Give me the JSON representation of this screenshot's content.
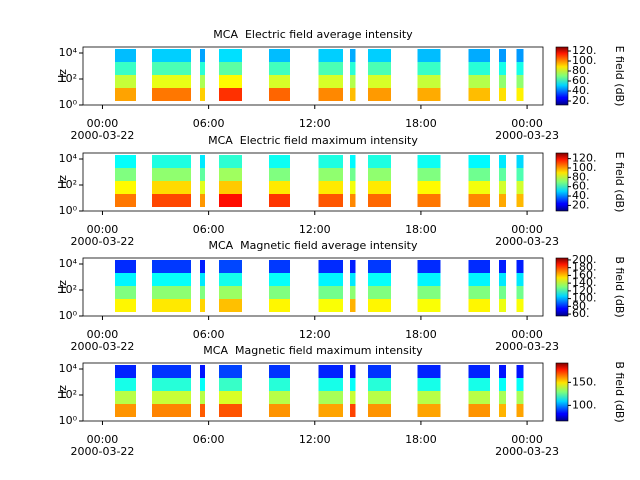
{
  "chart_data": [
    {
      "type": "spectrogram",
      "title": "MCA  Electric field average intensity",
      "ylabel": "Hz",
      "zlabel": "E field (dB)",
      "xlim": [
        -1.1,
        24.9
      ],
      "xticks": [
        {
          "value": 0,
          "label": "00:00",
          "date": "2000-03-22"
        },
        {
          "value": 6,
          "label": "06:00"
        },
        {
          "value": 12,
          "label": "12:00"
        },
        {
          "value": 18,
          "label": "18:00"
        },
        {
          "value": 24,
          "label": "00:00",
          "date": "2000-03-23"
        }
      ],
      "ylim": [
        1,
        29000
      ],
      "yscale": "log",
      "yticks": [
        {
          "value": 1,
          "label": "10⁰"
        },
        {
          "value": 100,
          "label": "10²"
        },
        {
          "value": 10000,
          "label": "10⁴"
        }
      ],
      "zlim": [
        12,
        128
      ],
      "zticks": [
        {
          "value": 20,
          "label": "20."
        },
        {
          "value": 40,
          "label": "40."
        },
        {
          "value": 60,
          "label": "60."
        },
        {
          "value": 80,
          "label": "80."
        },
        {
          "value": 100,
          "label": "100."
        },
        {
          "value": 120,
          "label": "120."
        }
      ],
      "blocks": [
        [
          0.7,
          1.9
        ],
        [
          2.8,
          5.0
        ],
        [
          5.5,
          5.8
        ],
        [
          6.6,
          7.9
        ],
        [
          9.4,
          10.6
        ],
        [
          12.2,
          13.6
        ],
        [
          14.0,
          14.3
        ],
        [
          15.0,
          16.3
        ],
        [
          17.8,
          19.1
        ],
        [
          20.7,
          21.9
        ],
        [
          22.4,
          22.8
        ],
        [
          23.4,
          23.8
        ]
      ],
      "bands": [
        2,
        20,
        200,
        2000,
        20000
      ],
      "z": [
        [
          95,
          78,
          62,
          48
        ],
        [
          100,
          82,
          64,
          50
        ],
        [
          90,
          75,
          60,
          45
        ],
        [
          108,
          85,
          66,
          52
        ],
        [
          102,
          80,
          63,
          48
        ],
        [
          98,
          80,
          64,
          50
        ],
        [
          92,
          76,
          60,
          46
        ],
        [
          96,
          80,
          64,
          50
        ],
        [
          94,
          78,
          62,
          48
        ],
        [
          92,
          76,
          60,
          46
        ],
        [
          88,
          72,
          58,
          44
        ],
        [
          86,
          72,
          58,
          44
        ]
      ]
    },
    {
      "type": "spectrogram",
      "title": "MCA  Electric field maximum intensity",
      "ylabel": "Hz",
      "zlabel": "E field (dB)",
      "xlim": [
        -1.1,
        24.9
      ],
      "xticks": [
        {
          "value": 0,
          "label": "00:00",
          "date": "2000-03-22"
        },
        {
          "value": 6,
          "label": "06:00"
        },
        {
          "value": 12,
          "label": "12:00"
        },
        {
          "value": 18,
          "label": "18:00"
        },
        {
          "value": 24,
          "label": "00:00",
          "date": "2000-03-23"
        }
      ],
      "ylim": [
        1,
        29000
      ],
      "yscale": "log",
      "yticks": [
        {
          "value": 1,
          "label": "10⁰"
        },
        {
          "value": 100,
          "label": "10²"
        },
        {
          "value": 10000,
          "label": "10⁴"
        }
      ],
      "zlim": [
        8,
        132
      ],
      "zticks": [
        {
          "value": 20,
          "label": "20."
        },
        {
          "value": 40,
          "label": "40."
        },
        {
          "value": 60,
          "label": "60."
        },
        {
          "value": 80,
          "label": "80."
        },
        {
          "value": 100,
          "label": "100."
        },
        {
          "value": 120,
          "label": "120."
        }
      ],
      "blocks": [
        [
          0.7,
          1.9
        ],
        [
          2.8,
          5.0
        ],
        [
          5.5,
          5.8
        ],
        [
          6.6,
          7.9
        ],
        [
          9.4,
          10.6
        ],
        [
          12.2,
          13.6
        ],
        [
          14.0,
          14.3
        ],
        [
          15.0,
          16.3
        ],
        [
          17.8,
          19.1
        ],
        [
          20.7,
          21.9
        ],
        [
          22.4,
          22.8
        ],
        [
          23.4,
          23.8
        ]
      ],
      "bands": [
        2,
        20,
        200,
        2000,
        20000
      ],
      "z": [
        [
          102,
          86,
          70,
          55
        ],
        [
          108,
          90,
          72,
          58
        ],
        [
          98,
          82,
          66,
          52
        ],
        [
          115,
          92,
          74,
          60
        ],
        [
          110,
          88,
          70,
          56
        ],
        [
          106,
          88,
          72,
          58
        ],
        [
          100,
          84,
          68,
          54
        ],
        [
          104,
          88,
          72,
          58
        ],
        [
          102,
          86,
          70,
          56
        ],
        [
          100,
          84,
          68,
          54
        ],
        [
          96,
          80,
          66,
          52
        ],
        [
          94,
          80,
          64,
          50
        ]
      ]
    },
    {
      "type": "spectrogram",
      "title": "MCA  Magnetic field average intensity",
      "ylabel": "Hz",
      "zlabel": "B field (dB)",
      "xlim": [
        -1.1,
        24.9
      ],
      "xticks": [
        {
          "value": 0,
          "label": "00:00",
          "date": "2000-03-22"
        },
        {
          "value": 6,
          "label": "06:00"
        },
        {
          "value": 12,
          "label": "12:00"
        },
        {
          "value": 18,
          "label": "18:00"
        },
        {
          "value": 24,
          "label": "00:00",
          "date": "2000-03-23"
        }
      ],
      "ylim": [
        1,
        29000
      ],
      "yscale": "log",
      "yticks": [
        {
          "value": 1,
          "label": "10⁰"
        },
        {
          "value": 100,
          "label": "10²"
        },
        {
          "value": 10000,
          "label": "10⁴"
        }
      ],
      "zlim": [
        55,
        205
      ],
      "zticks": [
        {
          "value": 60,
          "label": "60."
        },
        {
          "value": 80,
          "label": "80."
        },
        {
          "value": 100,
          "label": "100."
        },
        {
          "value": 120,
          "label": "120."
        },
        {
          "value": 140,
          "label": "140."
        },
        {
          "value": 160,
          "label": "160."
        },
        {
          "value": 180,
          "label": "180."
        },
        {
          "value": 200,
          "label": "200."
        }
      ],
      "blocks": [
        [
          0.7,
          1.9
        ],
        [
          2.8,
          5.0
        ],
        [
          5.5,
          5.8
        ],
        [
          6.6,
          7.9
        ],
        [
          9.4,
          10.6
        ],
        [
          12.2,
          13.6
        ],
        [
          14.0,
          14.3
        ],
        [
          15.0,
          16.3
        ],
        [
          17.8,
          19.1
        ],
        [
          20.7,
          21.9
        ],
        [
          22.4,
          22.8
        ],
        [
          23.4,
          23.8
        ]
      ],
      "bands": [
        2,
        20,
        200,
        2000,
        20000
      ],
      "z": [
        [
          150,
          130,
          110,
          80
        ],
        [
          152,
          132,
          112,
          82
        ],
        [
          155,
          130,
          108,
          78
        ],
        [
          158,
          134,
          114,
          84
        ],
        [
          150,
          130,
          112,
          82
        ],
        [
          148,
          128,
          110,
          80
        ],
        [
          160,
          132,
          108,
          78
        ],
        [
          150,
          130,
          112,
          82
        ],
        [
          148,
          130,
          110,
          80
        ],
        [
          150,
          130,
          110,
          80
        ],
        [
          146,
          128,
          108,
          78
        ],
        [
          148,
          128,
          108,
          78
        ]
      ]
    },
    {
      "type": "spectrogram",
      "title": "MCA  Magnetic field maximum intensity",
      "ylabel": "Hz",
      "zlabel": "B field (dB)",
      "xlim": [
        -1.1,
        24.9
      ],
      "xticks": [
        {
          "value": 0,
          "label": "00:00",
          "date": "2000-03-22"
        },
        {
          "value": 6,
          "label": "06:00"
        },
        {
          "value": 12,
          "label": "12:00"
        },
        {
          "value": 18,
          "label": "18:00"
        },
        {
          "value": 24,
          "label": "00:00",
          "date": "2000-03-23"
        }
      ],
      "ylim": [
        1,
        29000
      ],
      "yscale": "log",
      "yticks": [
        {
          "value": 1,
          "label": "10⁰"
        },
        {
          "value": 100,
          "label": "10²"
        },
        {
          "value": 10000,
          "label": "10⁴"
        }
      ],
      "zlim": [
        66,
        192
      ],
      "zticks": [
        {
          "value": 100,
          "label": "100."
        },
        {
          "value": 150,
          "label": "150."
        }
      ],
      "blocks": [
        [
          0.7,
          1.9
        ],
        [
          2.8,
          5.0
        ],
        [
          5.5,
          5.8
        ],
        [
          6.6,
          7.9
        ],
        [
          9.4,
          10.6
        ],
        [
          12.2,
          13.6
        ],
        [
          14.0,
          14.3
        ],
        [
          15.0,
          16.3
        ],
        [
          17.8,
          19.1
        ],
        [
          20.7,
          21.9
        ],
        [
          22.4,
          22.8
        ],
        [
          23.4,
          23.8
        ]
      ],
      "bands": [
        2,
        20,
        200,
        2000,
        20000
      ],
      "z": [
        [
          158,
          136,
          116,
          86
        ],
        [
          160,
          138,
          118,
          88
        ],
        [
          165,
          136,
          114,
          84
        ],
        [
          166,
          140,
          120,
          90
        ],
        [
          158,
          136,
          118,
          88
        ],
        [
          156,
          134,
          116,
          86
        ],
        [
          168,
          138,
          114,
          84
        ],
        [
          158,
          136,
          118,
          88
        ],
        [
          156,
          136,
          116,
          86
        ],
        [
          158,
          136,
          116,
          86
        ],
        [
          154,
          134,
          114,
          84
        ],
        [
          156,
          134,
          114,
          84
        ]
      ]
    }
  ]
}
